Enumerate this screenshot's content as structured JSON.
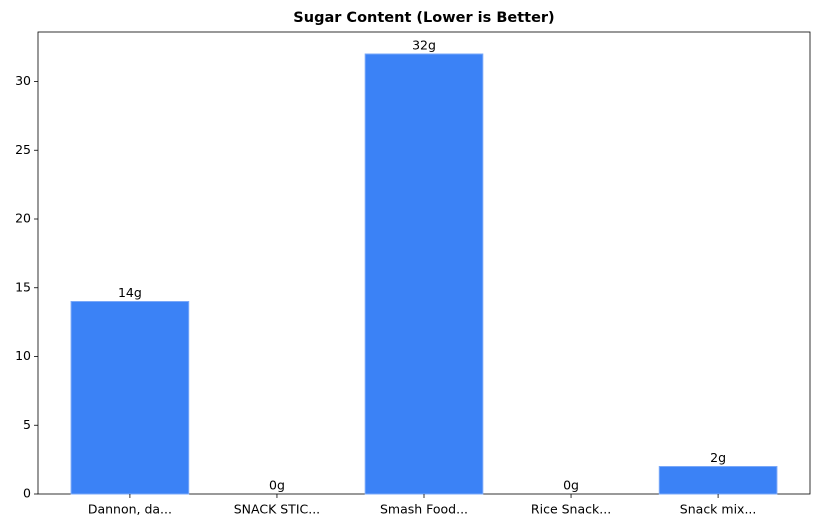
{
  "chart_data": {
    "type": "bar",
    "title": "Sugar Content (Lower is Better)",
    "categories": [
      "Dannon, da...",
      "SNACK STIC...",
      "Smash Food...",
      "Rice Snack...",
      "Snack mix..."
    ],
    "values": [
      14,
      0,
      32,
      0,
      2
    ],
    "value_labels": [
      "14g",
      "0g",
      "32g",
      "0g",
      "2g"
    ],
    "color": "#3b82f6",
    "ylim": [
      0,
      33.6
    ],
    "yticks": [
      0,
      5,
      10,
      15,
      20,
      25,
      30
    ]
  }
}
